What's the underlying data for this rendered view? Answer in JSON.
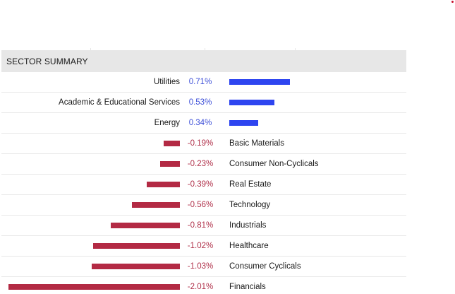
{
  "header": {
    "title": "SECTOR SUMMARY"
  },
  "colors": {
    "positive_bar": "#2e45f0",
    "negative_bar": "#b32a44",
    "positive_text": "#3d4fd8",
    "negative_text": "#b0314a",
    "header_bg": "#e7e7e7"
  },
  "sectors": [
    {
      "name": "Utilities",
      "change": "0.71%",
      "value": 0.71
    },
    {
      "name": "Academic & Educational Services",
      "change": "0.53%",
      "value": 0.53
    },
    {
      "name": "Energy",
      "change": "0.34%",
      "value": 0.34
    },
    {
      "name": "Basic Materials",
      "change": "-0.19%",
      "value": -0.19
    },
    {
      "name": "Consumer Non-Cyclicals",
      "change": "-0.23%",
      "value": -0.23
    },
    {
      "name": "Real Estate",
      "change": "-0.39%",
      "value": -0.39
    },
    {
      "name": "Technology",
      "change": "-0.56%",
      "value": -0.56
    },
    {
      "name": "Industrials",
      "change": "-0.81%",
      "value": -0.81
    },
    {
      "name": "Healthcare",
      "change": "-1.02%",
      "value": -1.02
    },
    {
      "name": "Consumer Cyclicals",
      "change": "-1.03%",
      "value": -1.03
    },
    {
      "name": "Financials",
      "change": "-2.01%",
      "value": -2.01
    }
  ]
}
